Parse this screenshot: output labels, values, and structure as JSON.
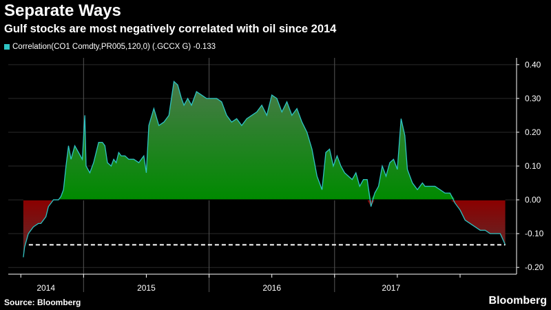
{
  "title": "Separate Ways",
  "subtitle": "Gulf stocks are most negatively correlated with oil since 2014",
  "legend": {
    "label": "Correlation(CO1 Comdty,PR005,120,0) (.GCCX G) -0.133",
    "color": "#2ec4c4"
  },
  "footer": {
    "source": "Source: Bloomberg",
    "brand": "Bloomberg"
  },
  "chart_data": {
    "type": "area",
    "title": "Separate Ways",
    "subtitle": "Gulf stocks are most negatively correlated with oil since 2014",
    "xlabel": "",
    "ylabel": "",
    "x_ticks": [
      "2014",
      "2015",
      "2016",
      "2017"
    ],
    "y_ticks": [
      "0.40",
      "0.30",
      "0.20",
      "0.10",
      "0.00",
      "-0.10",
      "-0.20"
    ],
    "ylim": [
      -0.22,
      0.42
    ],
    "xlim": [
      2013.9,
      2017.95
    ],
    "legend_position": "top-left",
    "colors": {
      "line": "#2ec4c4",
      "positive_fill": "#008a00",
      "negative_fill": "#8b0000",
      "reference_line": "#ffffff"
    },
    "reference_line": {
      "value": -0.133,
      "style": "dashed"
    },
    "series": [
      {
        "name": "Correlation(CO1 Comdty,PR005,120,0) (.GCCX G)",
        "last_value": -0.133,
        "x": [
          2014.02,
          2014.03,
          2014.045,
          2014.06,
          2014.08,
          2014.1,
          2014.12,
          2014.14,
          2014.16,
          2014.18,
          2014.2,
          2014.22,
          2014.24,
          2014.26,
          2014.28,
          2014.3,
          2014.32,
          2014.34,
          2014.36,
          2014.38,
          2014.4,
          2014.43,
          2014.46,
          2014.49,
          2014.51,
          2014.52,
          2014.55,
          2014.58,
          2014.6,
          2014.62,
          2014.65,
          2014.67,
          2014.69,
          2014.72,
          2014.74,
          2014.76,
          2014.78,
          2014.8,
          2014.83,
          2014.86,
          2014.9,
          2014.94,
          2014.98,
          2015.0,
          2015.02,
          2015.06,
          2015.1,
          2015.14,
          2015.18,
          2015.22,
          2015.25,
          2015.28,
          2015.3,
          2015.33,
          2015.36,
          2015.4,
          2015.44,
          2015.48,
          2015.52,
          2015.56,
          2015.6,
          2015.64,
          2015.68,
          2015.72,
          2015.76,
          2015.8,
          2015.84,
          2015.88,
          2015.92,
          2015.96,
          2016.0,
          2016.04,
          2016.08,
          2016.12,
          2016.16,
          2016.2,
          2016.24,
          2016.28,
          2016.32,
          2016.36,
          2016.4,
          2016.43,
          2016.46,
          2016.49,
          2016.52,
          2016.55,
          2016.58,
          2016.61,
          2016.64,
          2016.67,
          2016.7,
          2016.73,
          2016.76,
          2016.79,
          2016.82,
          2016.85,
          2016.88,
          2016.91,
          2016.94,
          2016.97,
          2017.0,
          2017.03,
          2017.06,
          2017.08,
          2017.1,
          2017.12,
          2017.14,
          2017.16,
          2017.18,
          2017.2,
          2017.22,
          2017.26,
          2017.3,
          2017.34,
          2017.38,
          2017.42,
          2017.46,
          2017.5,
          2017.54,
          2017.58,
          2017.62,
          2017.66,
          2017.7,
          2017.74,
          2017.78,
          2017.82,
          2017.86
        ],
        "y": [
          -0.17,
          -0.14,
          -0.12,
          -0.1,
          -0.09,
          -0.08,
          -0.075,
          -0.07,
          -0.07,
          -0.06,
          -0.05,
          -0.02,
          -0.01,
          0.0,
          0.0,
          0.0,
          0.01,
          0.03,
          0.1,
          0.16,
          0.12,
          0.16,
          0.14,
          0.12,
          0.25,
          0.1,
          0.08,
          0.11,
          0.14,
          0.17,
          0.17,
          0.16,
          0.11,
          0.1,
          0.12,
          0.11,
          0.14,
          0.13,
          0.13,
          0.12,
          0.12,
          0.11,
          0.13,
          0.08,
          0.22,
          0.27,
          0.22,
          0.23,
          0.25,
          0.35,
          0.34,
          0.3,
          0.28,
          0.3,
          0.28,
          0.32,
          0.31,
          0.3,
          0.3,
          0.3,
          0.29,
          0.25,
          0.23,
          0.24,
          0.22,
          0.24,
          0.25,
          0.26,
          0.28,
          0.25,
          0.31,
          0.3,
          0.26,
          0.29,
          0.25,
          0.27,
          0.23,
          0.2,
          0.15,
          0.07,
          0.03,
          0.14,
          0.15,
          0.1,
          0.13,
          0.1,
          0.08,
          0.07,
          0.06,
          0.08,
          0.04,
          0.06,
          0.06,
          -0.02,
          0.02,
          0.04,
          0.1,
          0.07,
          0.11,
          0.12,
          0.09,
          0.24,
          0.19,
          0.09,
          0.07,
          0.05,
          0.04,
          0.03,
          0.04,
          0.05,
          0.04,
          0.04,
          0.04,
          0.03,
          0.02,
          0.02,
          -0.01,
          -0.03,
          -0.06,
          -0.07,
          -0.08,
          -0.09,
          -0.09,
          -0.1,
          -0.1,
          -0.1,
          -0.133
        ]
      }
    ]
  }
}
